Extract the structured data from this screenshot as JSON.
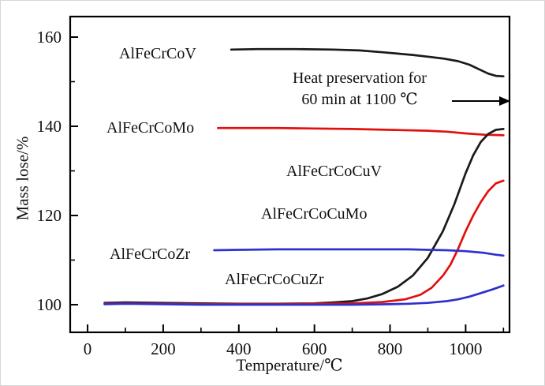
{
  "chart_data": {
    "type": "line",
    "title": "",
    "xlabel": "Temperature/℃",
    "ylabel": "Mass lose/%",
    "x_ticks": [
      0,
      200,
      400,
      600,
      800,
      1000
    ],
    "y_ticks": [
      100,
      120,
      140,
      160
    ],
    "x_minor_step": 100,
    "y_minor_step": 10,
    "x_range": [
      -46,
      1116
    ],
    "y_range": [
      93.8,
      164.6
    ],
    "grid": "off",
    "legend_position": "inline-labels",
    "annotation": {
      "lines": [
        "Heat preservation for",
        "60 min at 1100 ℃"
      ],
      "arrow": "right"
    },
    "series": [
      {
        "name": "AlFeCrCoV",
        "color": "#1a1a1a",
        "x": [
          380,
          450,
          550,
          650,
          720,
          780,
          820,
          860,
          900,
          940,
          980,
          1010,
          1040,
          1060,
          1080,
          1100
        ],
        "y": [
          157.2,
          157.3,
          157.3,
          157.2,
          157.0,
          156.6,
          156.3,
          156.0,
          155.6,
          155.2,
          154.6,
          153.8,
          152.6,
          151.8,
          151.3,
          151.2
        ]
      },
      {
        "name": "AlFeCrCoMo",
        "color": "#e2100d",
        "x": [
          345,
          400,
          500,
          600,
          700,
          800,
          900,
          950,
          1000,
          1050,
          1100
        ],
        "y": [
          139.6,
          139.6,
          139.6,
          139.5,
          139.4,
          139.2,
          139.0,
          138.8,
          138.4,
          138.1,
          138.0
        ]
      },
      {
        "name": "AlFeCrCoCuV",
        "color": "#1a1a1a",
        "x": [
          45,
          100,
          200,
          300,
          400,
          500,
          600,
          650,
          700,
          740,
          780,
          820,
          860,
          900,
          940,
          970,
          1000,
          1020,
          1040,
          1060,
          1080,
          1100
        ],
        "y": [
          100.4,
          100.5,
          100.4,
          100.3,
          100.2,
          100.2,
          100.3,
          100.5,
          100.8,
          101.4,
          102.4,
          104.0,
          106.5,
          110.5,
          116.5,
          122.5,
          129.5,
          133.5,
          136.5,
          138.3,
          139.2,
          139.4
        ]
      },
      {
        "name": "AlFeCrCoCuMo",
        "color": "#e2100d",
        "x": [
          45,
          100,
          200,
          300,
          400,
          500,
          600,
          700,
          780,
          840,
          880,
          910,
          940,
          960,
          980,
          1000,
          1020,
          1040,
          1060,
          1080,
          1100
        ],
        "y": [
          100.2,
          100.3,
          100.2,
          100.1,
          100.1,
          100.1,
          100.2,
          100.3,
          100.6,
          101.2,
          102.2,
          103.8,
          106.5,
          109.0,
          112.5,
          116.5,
          120.0,
          123.0,
          125.5,
          127.2,
          127.8
        ]
      },
      {
        "name": "AlFeCrCoZr",
        "color": "#3030cf",
        "x": [
          335,
          400,
          500,
          600,
          700,
          800,
          850,
          900,
          950,
          1000,
          1050,
          1080,
          1100
        ],
        "y": [
          112.2,
          112.3,
          112.4,
          112.4,
          112.4,
          112.4,
          112.4,
          112.3,
          112.2,
          112.0,
          111.6,
          111.2,
          111.0
        ]
      },
      {
        "name": "AlFeCrCoCuZr",
        "color": "#3030cf",
        "x": [
          45,
          100,
          200,
          300,
          400,
          500,
          600,
          700,
          800,
          850,
          900,
          950,
          980,
          1010,
          1040,
          1070,
          1100
        ],
        "y": [
          100.1,
          100.2,
          100.1,
          100.0,
          100.0,
          100.0,
          100.0,
          100.0,
          100.1,
          100.2,
          100.4,
          100.8,
          101.2,
          101.8,
          102.6,
          103.4,
          104.3
        ]
      }
    ]
  }
}
